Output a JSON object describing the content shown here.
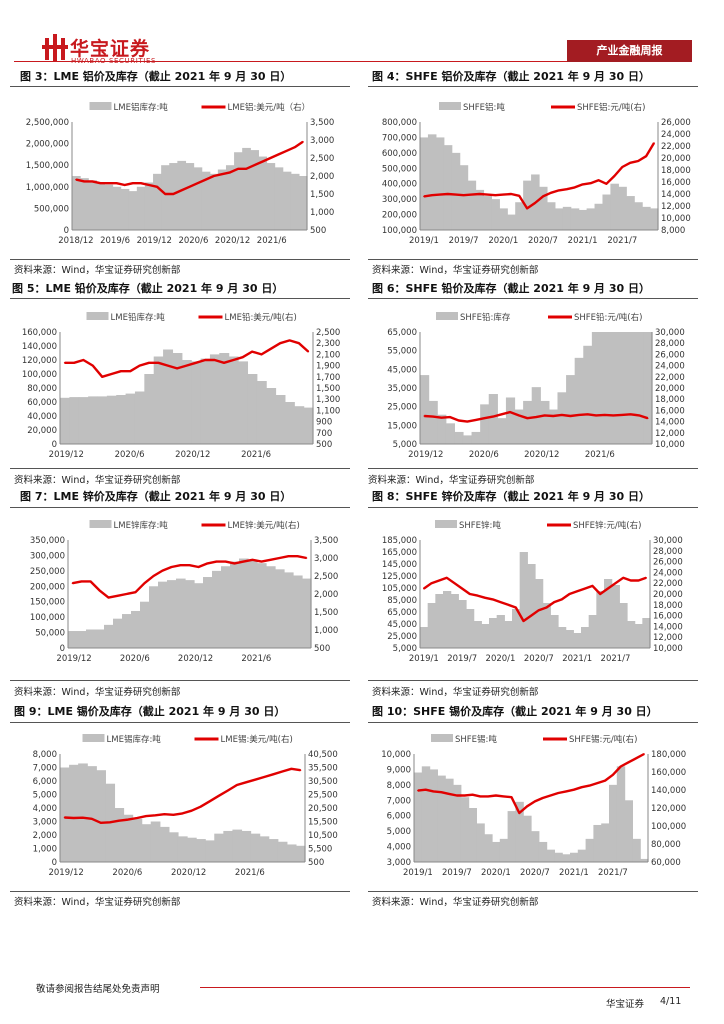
{
  "header": {
    "brand_cn": "华宝证券",
    "brand_en": "HWABAO SECURITIES",
    "tag": "产业金融周报",
    "brand_color": "#c8191e"
  },
  "figures": [
    {
      "title": "图 3：LME 铝价及库存（截止 2021 年 9 月 30 日）",
      "source": "资料来源：Wind，华宝证券研究创新部"
    },
    {
      "title": "图 4：SHFE 铝价及库存（截止 2021 年 9 月 30 日）",
      "source": "资料来源：Wind，华宝证券研究创新部"
    },
    {
      "title": "图 5：LME 铅价及库存（截止 2021 年 9 月 30 日）",
      "source": "资料来源：Wind，华宝证券研究创新部"
    },
    {
      "title": "图 6：SHFE 铅价及库存（截止 2021 年 9 月 30 日）",
      "source": "资料来源：Wind，华宝证券研究创新部"
    },
    {
      "title": "图 7：LME 锌价及库存（截止 2021 年 9 月 30 日）",
      "source": "资料来源：Wind，华宝证券研究创新部"
    },
    {
      "title": "图 8：SHFE 锌价及库存（截止 2021 年 9 月 30 日）",
      "source": "资料来源：Wind，华宝证券研究创新部"
    },
    {
      "title": "图 9：LME 锡价及库存（截止 2021 年 9 月 30 日）",
      "source": "资料来源：Wind，华宝证券研究创新部"
    },
    {
      "title": "图 10：SHFE 锡价及库存（截止 2021 年 9 月 30 日）",
      "source": "资料来源：Wind，华宝证券研究创新部"
    }
  ],
  "footer": {
    "disclaimer": "敬请参阅报告结尾处免责声明",
    "company": "华宝证券",
    "page": "4/11"
  },
  "chart_data": [
    {
      "type": "area",
      "legend": [
        "LME铝库存:吨",
        "LME铝:美元/吨（右）"
      ],
      "xticks": [
        "2018/12",
        "2019/6",
        "2019/12",
        "2020/6",
        "2020/12",
        "2021/6"
      ],
      "yticks_left": [
        "2,500,000",
        "2,000,000",
        "1,500,000",
        "1,000,000",
        "500,000",
        "0"
      ],
      "yticks_right": [
        "3,500",
        "3,000",
        "2,500",
        "2,000",
        "1,500",
        "1,000",
        "500"
      ],
      "ylim_left": [
        0,
        2500000
      ],
      "ylim_right": [
        500,
        3500
      ],
      "series": [
        {
          "type": "area",
          "axis": "left",
          "color": "#bfbfbf",
          "values": [
            1250000,
            1200000,
            1150000,
            1100000,
            1050000,
            1000000,
            950000,
            900000,
            1000000,
            1100000,
            1300000,
            1500000,
            1550000,
            1600000,
            1550000,
            1450000,
            1350000,
            1300000,
            1400000,
            1500000,
            1800000,
            1900000,
            1850000,
            1700000,
            1550000,
            1450000,
            1350000,
            1300000,
            1250000
          ]
        },
        {
          "type": "line",
          "axis": "right",
          "color": "#e00000",
          "values": [
            1900,
            1850,
            1850,
            1800,
            1800,
            1800,
            1750,
            1800,
            1800,
            1750,
            1700,
            1500,
            1500,
            1600,
            1700,
            1800,
            1900,
            2000,
            2050,
            2100,
            2200,
            2200,
            2300,
            2400,
            2500,
            2600,
            2700,
            2800,
            2950
          ]
        }
      ]
    },
    {
      "type": "area",
      "legend": [
        "SHFE铝:吨",
        "SHFE铝:元/吨(右)"
      ],
      "xticks": [
        "2019/1",
        "2019/7",
        "2020/1",
        "2020/7",
        "2021/1",
        "2021/7"
      ],
      "yticks_left": [
        "800,000",
        "700,000",
        "600,000",
        "500,000",
        "400,000",
        "300,000",
        "200,000",
        "100,000"
      ],
      "yticks_right": [
        "26,000",
        "24,000",
        "22,000",
        "20,000",
        "18,000",
        "16,000",
        "14,000",
        "12,000",
        "10,000",
        "8,000"
      ],
      "ylim_left": [
        100000,
        800000
      ],
      "ylim_right": [
        8000,
        26000
      ],
      "series": [
        {
          "type": "area",
          "axis": "left",
          "color": "#bfbfbf",
          "values": [
            700000,
            720000,
            700000,
            650000,
            600000,
            520000,
            420000,
            360000,
            320000,
            300000,
            240000,
            200000,
            280000,
            420000,
            460000,
            380000,
            280000,
            240000,
            250000,
            240000,
            230000,
            240000,
            270000,
            330000,
            400000,
            380000,
            320000,
            280000,
            250000,
            240000
          ]
        },
        {
          "type": "line",
          "axis": "right",
          "color": "#e00000",
          "values": [
            13600,
            13800,
            13900,
            14000,
            13900,
            13800,
            13900,
            14000,
            13900,
            13800,
            13900,
            14000,
            13700,
            11600,
            12500,
            13600,
            14200,
            14600,
            14800,
            15100,
            15600,
            15800,
            16300,
            15700,
            17000,
            18500,
            19200,
            19500,
            20300,
            22500
          ]
        }
      ]
    },
    {
      "type": "area",
      "legend": [
        "LME铅库存:吨",
        "LME铅:美元/吨(右)"
      ],
      "xticks": [
        "2019/12",
        "2020/6",
        "2020/12",
        "2021/6"
      ],
      "yticks_left": [
        "160,000",
        "140,000",
        "120,000",
        "100,000",
        "80,000",
        "60,000",
        "40,000",
        "20,000",
        "0"
      ],
      "yticks_right": [
        "2,500",
        "2,300",
        "2,100",
        "1,900",
        "1,700",
        "1,500",
        "1,300",
        "1,100",
        "900",
        "700",
        "500"
      ],
      "ylim_left": [
        0,
        160000
      ],
      "ylim_right": [
        500,
        2500
      ],
      "series": [
        {
          "type": "area",
          "axis": "left",
          "color": "#bfbfbf",
          "values": [
            66000,
            67000,
            67000,
            68000,
            68000,
            69000,
            70000,
            72000,
            75000,
            100000,
            125000,
            135000,
            130000,
            120000,
            118000,
            122000,
            128000,
            130000,
            125000,
            118000,
            100000,
            90000,
            80000,
            70000,
            60000,
            54000,
            52000
          ]
        },
        {
          "type": "line",
          "axis": "right",
          "color": "#e00000",
          "values": [
            1950,
            1950,
            2000,
            1900,
            1700,
            1750,
            1800,
            1800,
            1900,
            1950,
            1950,
            1900,
            1850,
            1900,
            1950,
            2000,
            2000,
            1950,
            2000,
            2050,
            2150,
            2100,
            2200,
            2300,
            2350,
            2300,
            2150
          ]
        }
      ]
    },
    {
      "type": "area",
      "legend": [
        "SHFE铅:库存",
        "SHFE铅:元/吨(右)"
      ],
      "xticks": [
        "2019/12",
        "2020/6",
        "2020/12",
        "2021/6"
      ],
      "yticks_left": [
        "65,000",
        "55,000",
        "45,000",
        "35,000",
        "25,000",
        "15,000",
        "5,000"
      ],
      "yticks_right": [
        "30,000",
        "28,000",
        "26,000",
        "24,000",
        "22,000",
        "20,000",
        "18,000",
        "16,000",
        "14,000",
        "12,000",
        "10,000"
      ],
      "ylim_left": [
        5000,
        70000
      ],
      "ylim_right": [
        10000,
        30000
      ],
      "series": [
        {
          "type": "area",
          "axis": "left",
          "color": "#bfbfbf",
          "values": [
            45000,
            30000,
            22000,
            17000,
            12000,
            10000,
            12000,
            28000,
            34000,
            20000,
            32000,
            25000,
            30000,
            38000,
            30000,
            25000,
            35000,
            45000,
            55000,
            62000,
            70000,
            72000,
            72000,
            72000,
            72000,
            72000,
            72000
          ]
        },
        {
          "type": "line",
          "axis": "right",
          "color": "#e00000",
          "values": [
            15000,
            14900,
            14700,
            14800,
            14200,
            14000,
            14300,
            14600,
            14900,
            15300,
            15700,
            15100,
            14600,
            14800,
            15100,
            15000,
            15200,
            15000,
            15200,
            15300,
            15100,
            15200,
            15100,
            15200,
            15300,
            15100,
            14600
          ]
        }
      ]
    },
    {
      "type": "area",
      "legend": [
        "LME锌库存:吨",
        "LME锌:美元/吨(右)"
      ],
      "xticks": [
        "2019/12",
        "2020/6",
        "2020/12",
        "2021/6"
      ],
      "yticks_left": [
        "350,000",
        "300,000",
        "250,000",
        "200,000",
        "150,000",
        "100,000",
        "50,000",
        "0"
      ],
      "yticks_right": [
        "3,500",
        "3,000",
        "2,500",
        "2,000",
        "1,500",
        "1,000",
        "500"
      ],
      "ylim_left": [
        0,
        350000
      ],
      "ylim_right": [
        500,
        3500
      ],
      "series": [
        {
          "type": "area",
          "axis": "left",
          "color": "#bfbfbf",
          "values": [
            55000,
            55000,
            60000,
            60000,
            75000,
            95000,
            110000,
            120000,
            150000,
            200000,
            215000,
            220000,
            225000,
            220000,
            210000,
            230000,
            250000,
            265000,
            280000,
            290000,
            285000,
            275000,
            265000,
            255000,
            245000,
            235000,
            225000
          ]
        },
        {
          "type": "line",
          "axis": "right",
          "color": "#e00000",
          "values": [
            2300,
            2350,
            2350,
            2100,
            1900,
            1950,
            2000,
            2050,
            2300,
            2500,
            2650,
            2750,
            2800,
            2800,
            2750,
            2850,
            2900,
            2900,
            2850,
            2900,
            2950,
            2900,
            2950,
            3000,
            3050,
            3050,
            3000
          ]
        }
      ]
    },
    {
      "type": "area",
      "legend": [
        "SHFE锌:吨",
        "SHFE锌:元/吨(右)"
      ],
      "xticks": [
        "2019/1",
        "2019/7",
        "2020/1",
        "2020/7",
        "2021/1",
        "2021/7"
      ],
      "yticks_left": [
        "185,000",
        "165,000",
        "145,000",
        "125,000",
        "105,000",
        "85,000",
        "65,000",
        "45,000",
        "25,000",
        "5,000"
      ],
      "yticks_right": [
        "30,000",
        "28,000",
        "26,000",
        "24,000",
        "22,000",
        "20,000",
        "18,000",
        "16,000",
        "14,000",
        "12,000",
        "10,000"
      ],
      "ylim_left": [
        5000,
        185000
      ],
      "ylim_right": [
        10000,
        30000
      ],
      "series": [
        {
          "type": "area",
          "axis": "left",
          "color": "#bfbfbf",
          "values": [
            40000,
            80000,
            95000,
            100000,
            95000,
            85000,
            70000,
            50000,
            45000,
            55000,
            60000,
            50000,
            70000,
            165000,
            145000,
            120000,
            80000,
            60000,
            40000,
            35000,
            30000,
            40000,
            60000,
            100000,
            120000,
            110000,
            80000,
            50000,
            45000,
            55000
          ]
        },
        {
          "type": "line",
          "axis": "right",
          "color": "#e00000",
          "values": [
            21000,
            22000,
            22500,
            23000,
            22000,
            21000,
            20000,
            19700,
            19300,
            19000,
            18500,
            18000,
            17500,
            15000,
            16000,
            17000,
            17500,
            18500,
            19000,
            20000,
            20500,
            21000,
            21500,
            20000,
            21000,
            22000,
            23000,
            22500,
            22500,
            23000
          ]
        }
      ]
    },
    {
      "type": "area",
      "legend": [
        "LME锡库存:吨",
        "LME锡:美元/吨(右)"
      ],
      "xticks": [
        "2019/12",
        "2020/6",
        "2020/12",
        "2021/6"
      ],
      "yticks_left": [
        "8,000",
        "7,000",
        "6,000",
        "5,000",
        "4,000",
        "3,000",
        "2,000",
        "1,000",
        "0"
      ],
      "yticks_right": [
        "40,500",
        "35,500",
        "30,500",
        "25,500",
        "20,500",
        "15,500",
        "10,500",
        "5,500",
        "500"
      ],
      "ylim_left": [
        0,
        8000
      ],
      "ylim_right": [
        500,
        40500
      ],
      "series": [
        {
          "type": "area",
          "axis": "left",
          "color": "#bfbfbf",
          "values": [
            7000,
            7200,
            7300,
            7100,
            6800,
            5800,
            4000,
            3500,
            3200,
            2800,
            3000,
            2600,
            2200,
            1900,
            1800,
            1700,
            1600,
            2100,
            2300,
            2400,
            2300,
            2100,
            1900,
            1700,
            1500,
            1300,
            1200
          ]
        },
        {
          "type": "line",
          "axis": "right",
          "color": "#e00000",
          "values": [
            17000,
            16800,
            16900,
            16500,
            15000,
            15200,
            15800,
            16200,
            16800,
            17500,
            17800,
            18200,
            18000,
            18500,
            19500,
            21000,
            23000,
            25000,
            27000,
            29000,
            30000,
            31000,
            32000,
            33000,
            34000,
            35000,
            34500
          ]
        }
      ]
    },
    {
      "type": "area",
      "legend": [
        "SHFE锡:吨",
        "SHFE锡:元/吨(右)"
      ],
      "xticks": [
        "2019/1",
        "2019/7",
        "2020/1",
        "2020/7",
        "2021/1",
        "2021/7"
      ],
      "yticks_left": [
        "10,000",
        "9,000",
        "8,000",
        "7,000",
        "6,000",
        "5,000",
        "4,000",
        "3,000"
      ],
      "yticks_right": [
        "180,000",
        "160,000",
        "140,000",
        "120,000",
        "100,000",
        "80,000",
        "60,000"
      ],
      "ylim_left": [
        3000,
        10000
      ],
      "ylim_right": [
        60000,
        190000
      ],
      "series": [
        {
          "type": "area",
          "axis": "left",
          "color": "#bfbfbf",
          "values": [
            8800,
            9200,
            9000,
            8600,
            8400,
            8000,
            7200,
            6500,
            5500,
            4800,
            4300,
            4500,
            6300,
            6900,
            6000,
            5000,
            4300,
            3800,
            3600,
            3500,
            3600,
            3800,
            4500,
            5400,
            5500,
            8000,
            9200,
            7000,
            4500,
            3200
          ]
        },
        {
          "type": "line",
          "axis": "right",
          "color": "#e00000",
          "values": [
            146000,
            147000,
            145000,
            144000,
            142000,
            140000,
            140000,
            141000,
            139000,
            139000,
            140000,
            139000,
            138000,
            119000,
            127000,
            133000,
            137000,
            140000,
            143000,
            145000,
            147000,
            150000,
            152000,
            155000,
            158000,
            165000,
            175000,
            180000,
            185000,
            190000
          ]
        }
      ]
    }
  ]
}
